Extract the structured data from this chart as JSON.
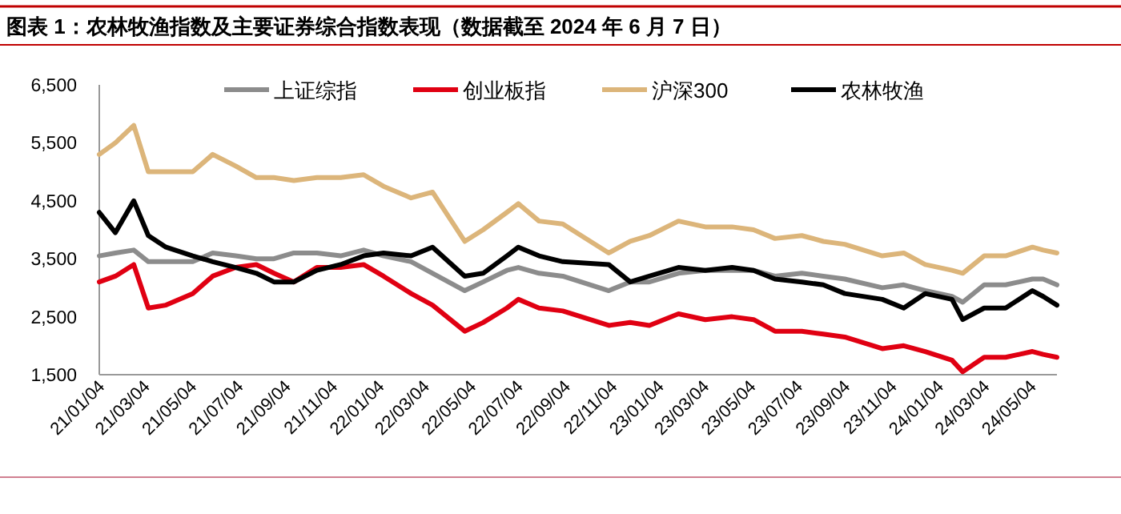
{
  "chart_data": {
    "type": "line",
    "title": "图表 1：农林牧渔指数及主要证券综合指数表现（数据截至 2024 年 6 月 7 日）",
    "x": [
      "2021-01-04",
      "2021-01-25",
      "2021-02-18",
      "2021-03-09",
      "2021-04-01",
      "2021-05-06",
      "2021-06-01",
      "2021-07-01",
      "2021-07-28",
      "2021-08-20",
      "2021-09-15",
      "2021-10-15",
      "2021-11-15",
      "2021-12-15",
      "2022-01-10",
      "2022-02-15",
      "2022-03-15",
      "2022-04-26",
      "2022-05-20",
      "2022-06-20",
      "2022-07-05",
      "2022-08-01",
      "2022-09-01",
      "2022-10-31",
      "2022-11-28",
      "2022-12-23",
      "2023-01-30",
      "2023-03-06",
      "2023-04-10",
      "2023-05-08",
      "2023-06-05",
      "2023-07-10",
      "2023-08-07",
      "2023-09-04",
      "2023-10-23",
      "2023-11-20",
      "2023-12-18",
      "2024-01-22",
      "2024-02-05",
      "2024-03-04",
      "2024-04-01",
      "2024-05-06",
      "2024-05-20",
      "2024-06-07"
    ],
    "series": [
      {
        "name": "上证综指",
        "color": "#8c8c8c",
        "values": [
          3550,
          3600,
          3650,
          3450,
          3450,
          3450,
          3600,
          3550,
          3500,
          3500,
          3600,
          3600,
          3550,
          3650,
          3550,
          3450,
          3250,
          2950,
          3100,
          3300,
          3350,
          3250,
          3200,
          2950,
          3100,
          3100,
          3250,
          3300,
          3300,
          3300,
          3200,
          3250,
          3200,
          3150,
          3000,
          3050,
          2950,
          2850,
          2750,
          3050,
          3050,
          3150,
          3150,
          3050
        ]
      },
      {
        "name": "创业板指",
        "color": "#e00012",
        "values": [
          3100,
          3200,
          3400,
          2650,
          2700,
          2900,
          3200,
          3350,
          3400,
          3250,
          3100,
          3350,
          3350,
          3400,
          3200,
          2900,
          2700,
          2250,
          2400,
          2650,
          2800,
          2650,
          2600,
          2350,
          2400,
          2350,
          2550,
          2450,
          2500,
          2450,
          2250,
          2250,
          2200,
          2150,
          1950,
          2000,
          1900,
          1750,
          1550,
          1800,
          1800,
          1900,
          1850,
          1800
        ]
      },
      {
        "name": "沪深300",
        "color": "#dcb57a",
        "values": [
          5300,
          5500,
          5800,
          5000,
          5000,
          5000,
          5300,
          5100,
          4900,
          4900,
          4850,
          4900,
          4900,
          4950,
          4750,
          4550,
          4650,
          3800,
          4000,
          4300,
          4450,
          4150,
          4100,
          3600,
          3800,
          3900,
          4150,
          4050,
          4050,
          4000,
          3850,
          3900,
          3800,
          3750,
          3550,
          3600,
          3400,
          3300,
          3250,
          3550,
          3550,
          3700,
          3650,
          3600
        ]
      },
      {
        "name": "农林牧渔",
        "color": "#000000",
        "values": [
          4300,
          3950,
          4500,
          3900,
          3700,
          3550,
          3450,
          3350,
          3250,
          3100,
          3100,
          3300,
          3400,
          3550,
          3600,
          3550,
          3700,
          3200,
          3250,
          3550,
          3700,
          3550,
          3450,
          3400,
          3100,
          3200,
          3350,
          3300,
          3350,
          3300,
          3150,
          3100,
          3050,
          2900,
          2800,
          2650,
          2900,
          2800,
          2450,
          2650,
          2650,
          2950,
          2850,
          2700
        ]
      }
    ],
    "xlim": [
      "2021-01-04",
      "2024-06-07"
    ],
    "xticks": [
      {
        "value": "2021-01-04",
        "label": "21/01/04"
      },
      {
        "value": "2021-03-04",
        "label": "21/03/04"
      },
      {
        "value": "2021-05-04",
        "label": "21/05/04"
      },
      {
        "value": "2021-07-04",
        "label": "21/07/04"
      },
      {
        "value": "2021-09-04",
        "label": "21/09/04"
      },
      {
        "value": "2021-11-04",
        "label": "21/11/04"
      },
      {
        "value": "2022-01-04",
        "label": "22/01/04"
      },
      {
        "value": "2022-03-04",
        "label": "22/03/04"
      },
      {
        "value": "2022-05-04",
        "label": "22/05/04"
      },
      {
        "value": "2022-07-04",
        "label": "22/07/04"
      },
      {
        "value": "2022-09-04",
        "label": "22/09/04"
      },
      {
        "value": "2022-11-04",
        "label": "22/11/04"
      },
      {
        "value": "2023-01-04",
        "label": "23/01/04"
      },
      {
        "value": "2023-03-04",
        "label": "23/03/04"
      },
      {
        "value": "2023-05-04",
        "label": "23/05/04"
      },
      {
        "value": "2023-07-04",
        "label": "23/07/04"
      },
      {
        "value": "2023-09-04",
        "label": "23/09/04"
      },
      {
        "value": "2023-11-04",
        "label": "23/11/04"
      },
      {
        "value": "2024-01-04",
        "label": "24/01/04"
      },
      {
        "value": "2024-03-04",
        "label": "24/03/04"
      },
      {
        "value": "2024-05-04",
        "label": "24/05/04"
      }
    ],
    "ylim": [
      1500,
      6500
    ],
    "yticks": [
      {
        "value": 1500,
        "label": "1,500"
      },
      {
        "value": 2500,
        "label": "2,500"
      },
      {
        "value": 3500,
        "label": "3,500"
      },
      {
        "value": 4500,
        "label": "4,500"
      },
      {
        "value": 5500,
        "label": "5,500"
      },
      {
        "value": 6500,
        "label": "6,500"
      }
    ],
    "grid": false,
    "legend": "top"
  }
}
